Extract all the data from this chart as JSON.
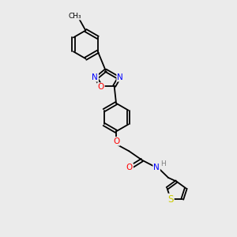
{
  "background_color": "#ebebeb",
  "bond_color": "#000000",
  "atom_colors": {
    "N": "#0000ff",
    "O": "#ff0000",
    "S": "#cccc00",
    "C": "#000000",
    "H": "#808080"
  },
  "font_size": 7.5,
  "lw": 1.3,
  "figsize": [
    3.0,
    3.0
  ],
  "dpi": 100
}
